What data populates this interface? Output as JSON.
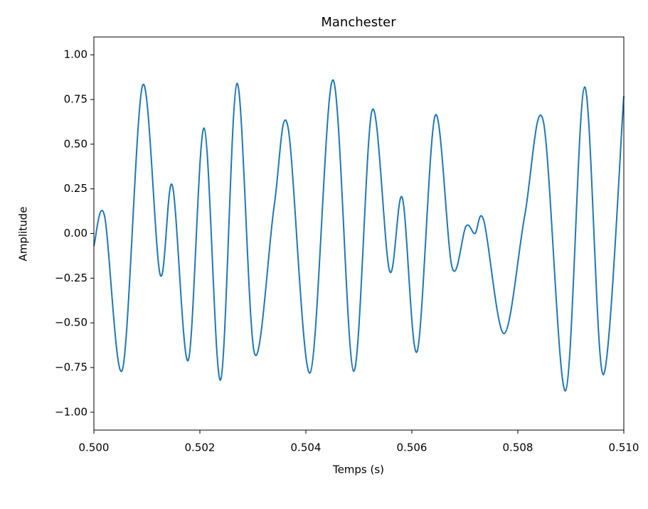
{
  "chart_data": {
    "type": "line",
    "title": "Manchester",
    "xlabel": "Temps (s)",
    "ylabel": "Amplitude",
    "xlim": [
      0.5,
      0.51
    ],
    "ylim": [
      -1.1,
      1.1
    ],
    "xticks": [
      {
        "value": 0.5,
        "label": "0.500"
      },
      {
        "value": 0.502,
        "label": "0.502"
      },
      {
        "value": 0.504,
        "label": "0.504"
      },
      {
        "value": 0.506,
        "label": "0.506"
      },
      {
        "value": 0.508,
        "label": "0.508"
      },
      {
        "value": 0.51,
        "label": "0.510"
      }
    ],
    "yticks": [
      {
        "value": -1,
        "label": "−1.00"
      },
      {
        "value": -0.75,
        "label": "−0.75"
      },
      {
        "value": -0.5,
        "label": "−0.50"
      },
      {
        "value": -0.25,
        "label": "−0.25"
      },
      {
        "value": 0,
        "label": "0.00"
      },
      {
        "value": 0.25,
        "label": "0.25"
      },
      {
        "value": 0.5,
        "label": "0.50"
      },
      {
        "value": 0.75,
        "label": "0.75"
      },
      {
        "value": 1,
        "label": "1.00"
      }
    ],
    "grid": false,
    "series": [
      {
        "color": "#1f77b4",
        "x": [
          0.5,
          0.5002,
          0.50054,
          0.50092,
          0.50125,
          0.50148,
          0.50178,
          0.50208,
          0.50239,
          0.5027,
          0.50303,
          0.5034,
          0.50366,
          0.50408,
          0.50451,
          0.5049,
          0.50525,
          0.50558,
          0.50582,
          0.5061,
          0.50644,
          0.50676,
          0.50702,
          0.50719,
          0.50736,
          0.50774,
          0.50813,
          0.50848,
          0.5089,
          0.50926,
          0.50961,
          0.51
        ],
        "values": [
          -0.07,
          0.1,
          -0.76,
          0.83,
          -0.23,
          0.27,
          -0.71,
          0.59,
          -0.82,
          0.84,
          -0.67,
          0.15,
          0.6,
          -0.78,
          0.86,
          -0.77,
          0.69,
          -0.21,
          0.2,
          -0.66,
          0.66,
          -0.19,
          0.04,
          0.0,
          0.07,
          -0.56,
          0.1,
          0.63,
          -0.88,
          0.82,
          -0.79,
          0.77
        ]
      }
    ]
  }
}
